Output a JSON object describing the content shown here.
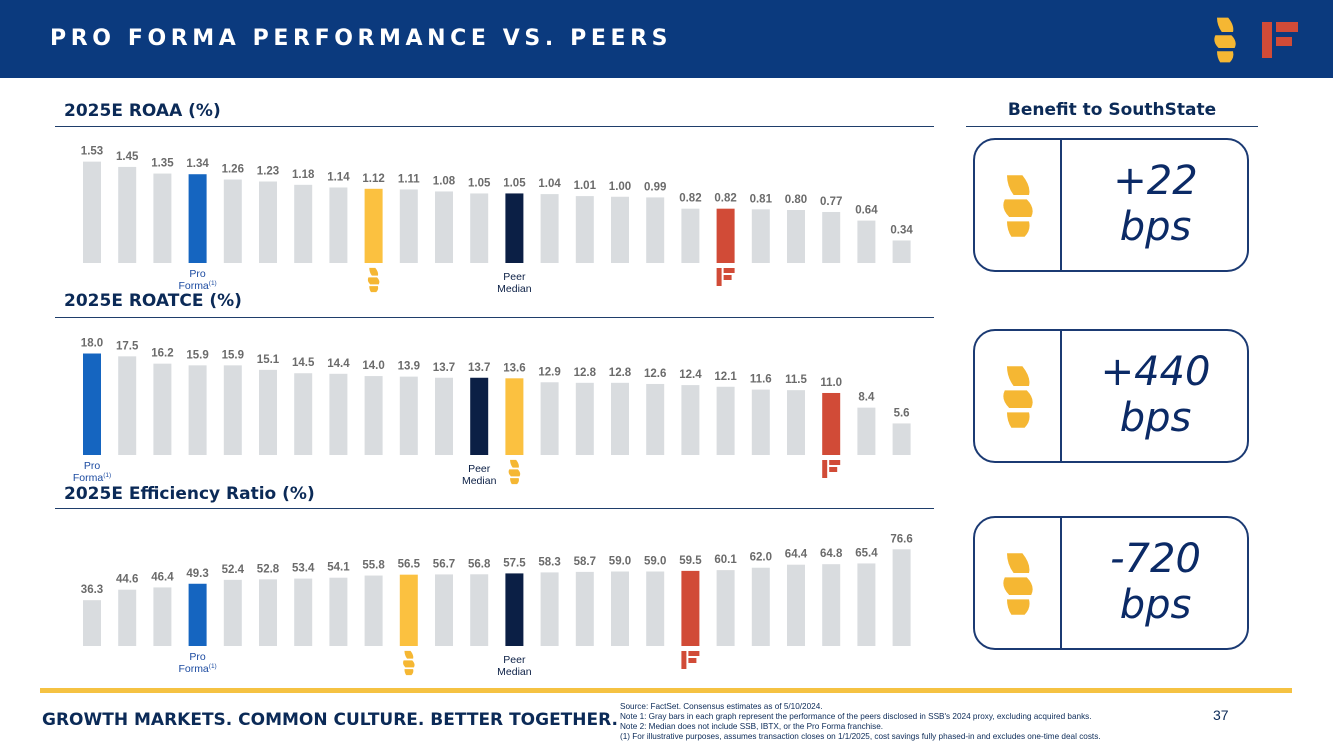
{
  "header": {
    "title": "PRO FORMA PERFORMANCE VS. PEERS"
  },
  "benefit": {
    "title": "Benefit to SouthState",
    "items": [
      {
        "value": "+22",
        "unit": "bps"
      },
      {
        "value": "+440",
        "unit": "bps"
      },
      {
        "value": "-720",
        "unit": "bps"
      }
    ]
  },
  "labels": {
    "pro": "Pro",
    "forma": "Forma",
    "footnote_mark": "(1)",
    "peer": "Peer",
    "median": "Median"
  },
  "colors": {
    "navy": "#0b3a7e",
    "peer_gray": "#d9dcdf",
    "pro_forma_blue": "#1565c0",
    "ssb_yellow": "#fbc140",
    "peer_median": "#0b1f45",
    "ibtx_red": "#d14b37",
    "value_label": "#6b6b6b"
  },
  "chart_data": [
    {
      "type": "bar",
      "title": "2025E ROAA (%)",
      "values": [
        1.53,
        1.45,
        1.35,
        1.34,
        1.26,
        1.23,
        1.18,
        1.14,
        1.12,
        1.11,
        1.08,
        1.05,
        1.05,
        1.04,
        1.01,
        1.0,
        0.99,
        0.82,
        0.82,
        0.81,
        0.8,
        0.77,
        0.64,
        0.34
      ],
      "labels": [
        "1.53",
        "1.45",
        "1.35",
        "1.34",
        "1.26",
        "1.23",
        "1.18",
        "1.14",
        "1.12",
        "1.11",
        "1.08",
        "1.05",
        "1.05",
        "1.04",
        "1.01",
        "1.00",
        "0.99",
        "0.82",
        "0.82",
        "0.81",
        "0.80",
        "0.77",
        "0.64",
        "0.34"
      ],
      "ylim": [
        0,
        1.6
      ],
      "highlight": {
        "pro_forma": 3,
        "ssb": 8,
        "peer_median": 12,
        "ibtx": 18
      }
    },
    {
      "type": "bar",
      "title": "2025E ROATCE (%)",
      "values": [
        18.0,
        17.5,
        16.2,
        15.9,
        15.9,
        15.1,
        14.5,
        14.4,
        14.0,
        13.9,
        13.7,
        13.7,
        13.6,
        12.9,
        12.8,
        12.8,
        12.6,
        12.4,
        12.1,
        11.6,
        11.5,
        11.0,
        8.4,
        5.6
      ],
      "labels": [
        "18.0",
        "17.5",
        "16.2",
        "15.9",
        "15.9",
        "15.1",
        "14.5",
        "14.4",
        "14.0",
        "13.9",
        "13.7",
        "13.7",
        "13.6",
        "12.9",
        "12.8",
        "12.8",
        "12.6",
        "12.4",
        "12.1",
        "11.6",
        "11.5",
        "11.0",
        "8.4",
        "5.6"
      ],
      "ylim": [
        0,
        18.8
      ],
      "highlight": {
        "pro_forma": 0,
        "peer_median": 11,
        "ssb": 12,
        "ibtx": 21
      }
    },
    {
      "type": "bar",
      "title": "2025E Efficiency Ratio (%)",
      "values": [
        36.3,
        44.6,
        46.4,
        49.3,
        52.4,
        52.8,
        53.4,
        54.1,
        55.8,
        56.5,
        56.7,
        56.8,
        57.5,
        58.3,
        58.7,
        59.0,
        59.0,
        59.5,
        60.1,
        62.0,
        64.4,
        64.8,
        65.4,
        76.6
      ],
      "labels": [
        "36.3",
        "44.6",
        "46.4",
        "49.3",
        "52.4",
        "52.8",
        "53.4",
        "54.1",
        "55.8",
        "56.5",
        "56.7",
        "56.8",
        "57.5",
        "58.3",
        "58.7",
        "59.0",
        "59.0",
        "59.5",
        "60.1",
        "62.0",
        "64.4",
        "64.8",
        "65.4",
        "76.6"
      ],
      "ylim": [
        0,
        80
      ],
      "highlight": {
        "pro_forma": 3,
        "ssb": 9,
        "peer_median": 12,
        "ibtx": 17
      }
    }
  ],
  "footer": {
    "tagline": "GROWTH MARKETS. COMMON CULTURE. BETTER TOGETHER.",
    "source": "Source: FactSet. Consensus estimates as of 5/10/2024.",
    "note1": "Note 1: Gray bars in each graph represent the performance of the peers disclosed in SSB's 2024 proxy, excluding acquired banks.",
    "note2": "Note 2: Median does not include SSB, IBTX, or the Pro Forma franchise.",
    "note3": "(1)     For illustrative purposes, assumes transaction closes on 1/1/2025, cost savings fully phased-in and excludes one-time deal costs.",
    "page": "37"
  }
}
